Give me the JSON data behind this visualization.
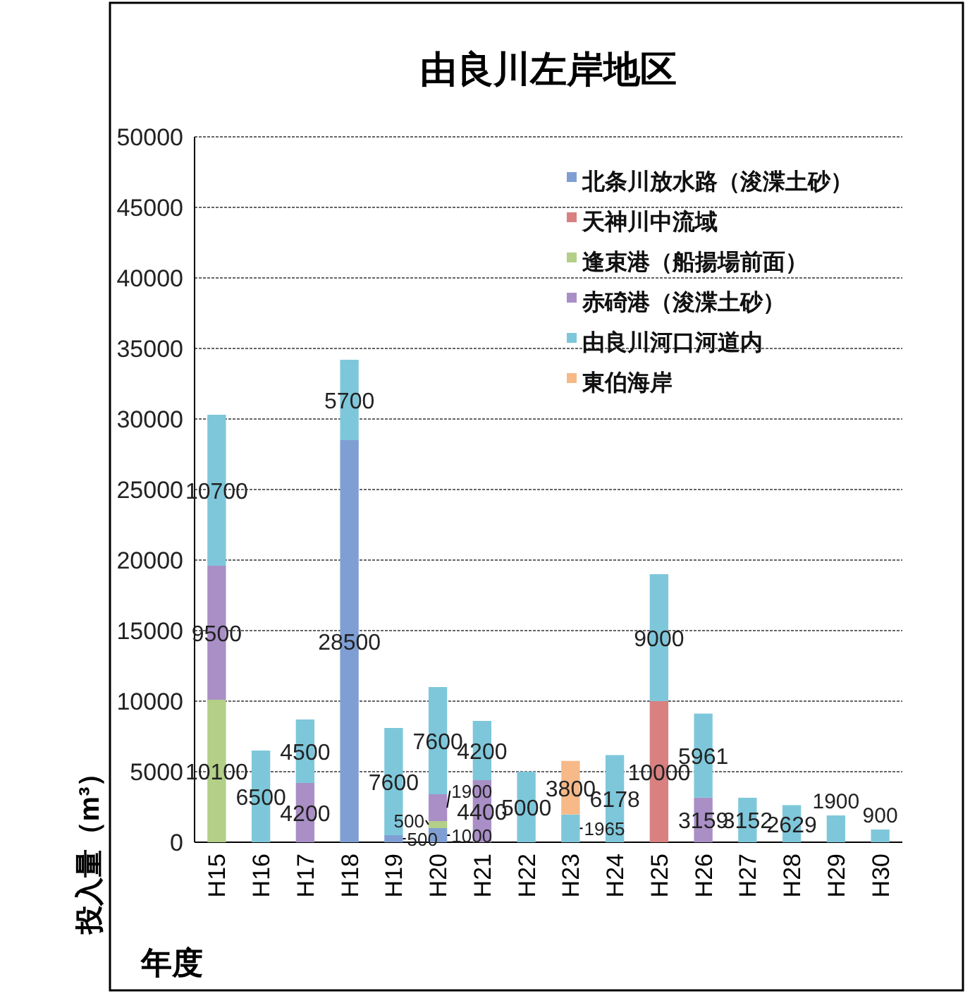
{
  "chart_data": {
    "type": "bar",
    "title": "由良川左岸地区",
    "xlabel": "年度",
    "ylabel": "投入量（m³）",
    "categories": [
      "H15",
      "H16",
      "H17",
      "H18",
      "H19",
      "H20",
      "H21",
      "H22",
      "H23",
      "H24",
      "H25",
      "H26",
      "H27",
      "H28",
      "H29",
      "H30"
    ],
    "stacked": true,
    "data_labels": true,
    "grid": "y",
    "legend": "top right",
    "ylim": [
      0,
      50000
    ],
    "yticks": [
      0,
      5000,
      10000,
      15000,
      20000,
      25000,
      30000,
      35000,
      40000,
      45000,
      50000
    ],
    "series": [
      {
        "name": "北条川放水路（浚渫土砂）",
        "color": "#7f9fd4",
        "values": [
          null,
          null,
          null,
          28500,
          500,
          1000,
          null,
          null,
          null,
          null,
          null,
          null,
          null,
          null,
          null,
          null
        ]
      },
      {
        "name": "天神川中流域",
        "color": "#d98080",
        "values": [
          null,
          null,
          null,
          null,
          null,
          null,
          null,
          null,
          null,
          null,
          10000,
          null,
          null,
          null,
          null,
          null
        ]
      },
      {
        "name": "逢束港（船揚場前面）",
        "color": "#b3cf88",
        "values": [
          10100,
          null,
          null,
          null,
          null,
          500,
          null,
          null,
          null,
          null,
          null,
          null,
          null,
          null,
          null,
          null
        ]
      },
      {
        "name": "赤碕港（浚渫土砂）",
        "color": "#a98fc6",
        "values": [
          9500,
          null,
          4200,
          null,
          null,
          1900,
          4400,
          null,
          null,
          null,
          null,
          3159,
          null,
          null,
          null,
          null
        ]
      },
      {
        "name": "由良川河口河道内",
        "color": "#7ec7db",
        "values": [
          10700,
          6500,
          4500,
          5700,
          7600,
          7600,
          4200,
          5000,
          1965,
          6178,
          9000,
          5961,
          3152,
          2629,
          1900,
          900
        ]
      },
      {
        "name": "東伯海岸",
        "color": "#f6b987",
        "values": [
          null,
          null,
          null,
          null,
          null,
          null,
          null,
          null,
          3800,
          null,
          null,
          null,
          null,
          null,
          null,
          null
        ]
      }
    ]
  }
}
